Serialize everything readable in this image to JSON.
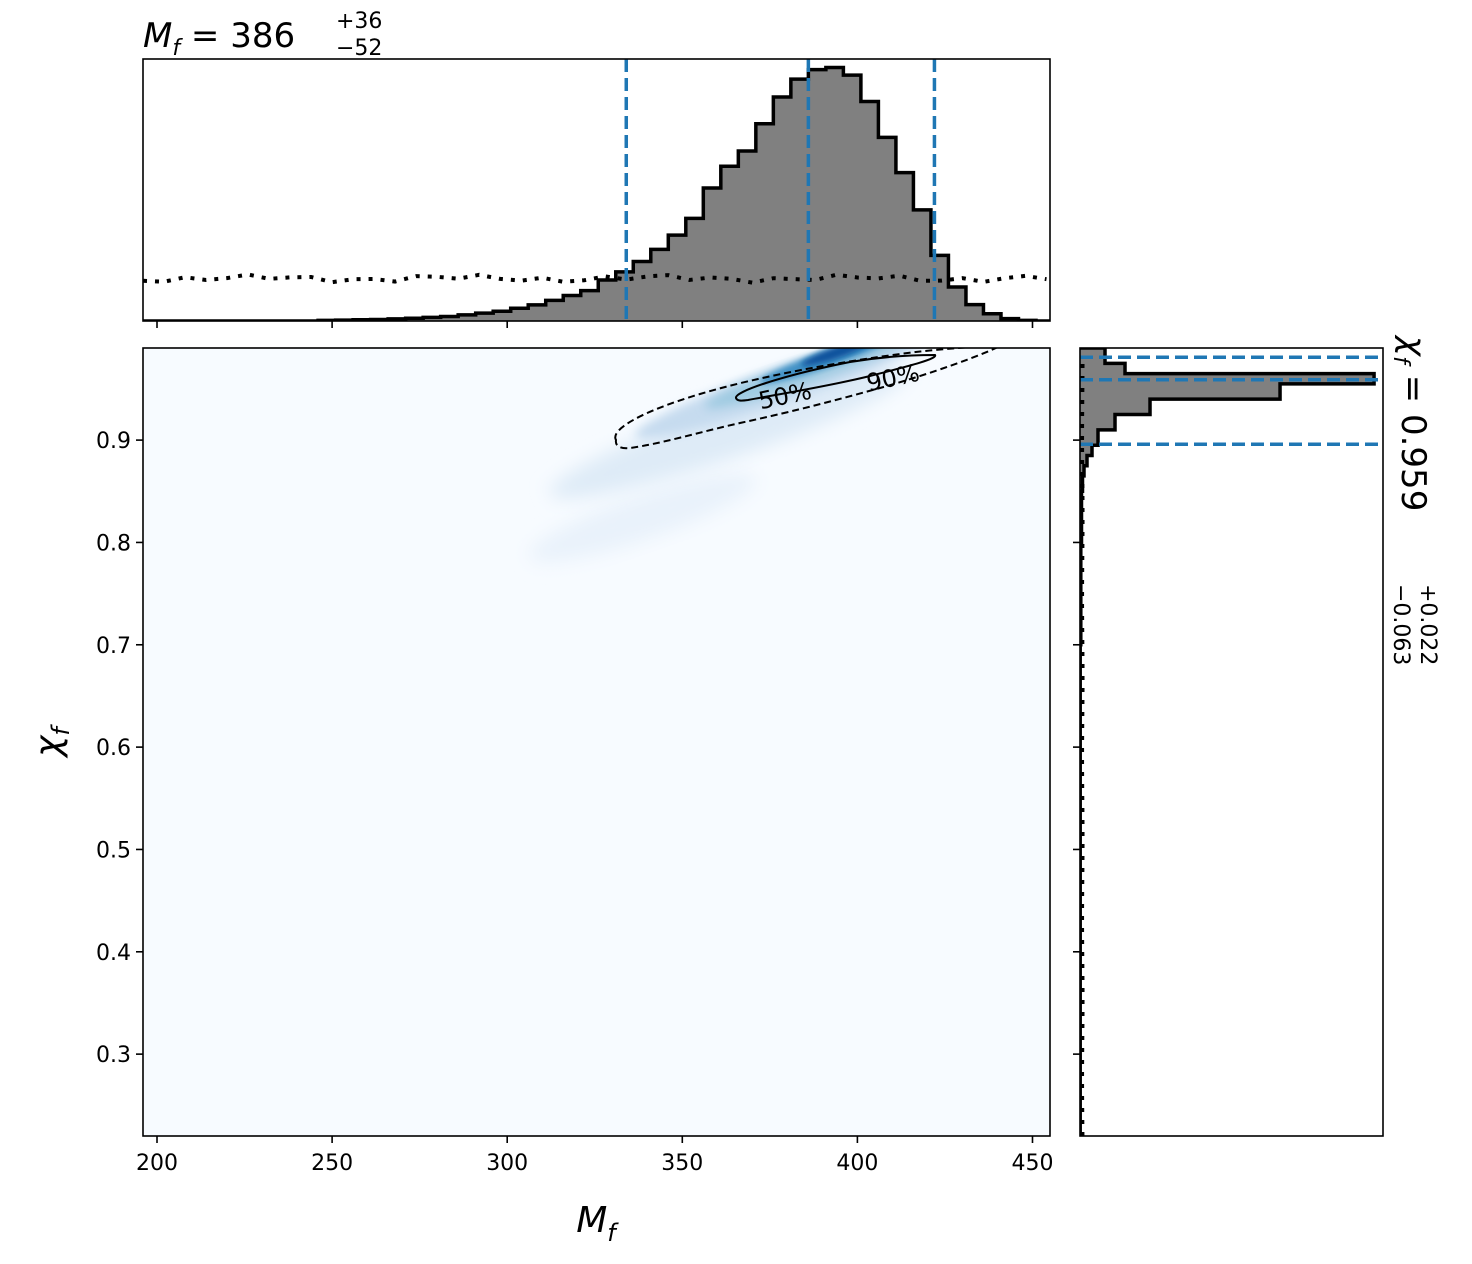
{
  "chart_data": {
    "type": "corner-plot",
    "top_title": {
      "lhs": "M",
      "sub": "f",
      "eq": " = ",
      "median": "386",
      "plus": "+36",
      "minus": "−52"
    },
    "right_title": {
      "lhs": "χ",
      "sub": "f",
      "eq": " = ",
      "median": "0.959",
      "plus": "+0.022",
      "minus": "−0.063"
    },
    "xlabel": {
      "main": "M",
      "sub": "f"
    },
    "ylabel": {
      "main": "χ",
      "sub": "f"
    },
    "xlim": [
      196,
      455
    ],
    "ylim": [
      0.22,
      0.99
    ],
    "xticks": [
      200,
      250,
      300,
      350,
      400,
      450
    ],
    "xtick_labels": [
      "200",
      "250",
      "300",
      "350",
      "400",
      "450"
    ],
    "yticks": [
      0.3,
      0.4,
      0.5,
      0.6,
      0.7,
      0.8,
      0.9
    ],
    "ytick_labels": [
      "0.3",
      "0.4",
      "0.5",
      "0.6",
      "0.7",
      "0.8",
      "0.9"
    ],
    "mf_quantiles": [
      334,
      386,
      422
    ],
    "chi_quantiles": [
      0.896,
      0.959,
      0.981
    ],
    "contour_labels": [
      "50%",
      "90%"
    ],
    "mf_histogram": {
      "bin_edges": [
        196,
        201,
        206,
        211,
        216,
        221,
        226,
        231,
        236,
        241,
        246,
        251,
        256,
        261,
        266,
        271,
        276,
        281,
        286,
        291,
        296,
        301,
        306,
        311,
        316,
        321,
        326,
        331,
        336,
        341,
        346,
        351,
        356,
        361,
        366,
        371,
        376,
        381,
        386,
        391,
        396,
        401,
        406,
        411,
        416,
        421,
        426,
        431,
        436,
        441,
        446,
        451,
        455
      ],
      "counts": [
        0.0,
        0.0,
        0.0,
        0.0,
        0.0,
        0.0,
        0.0,
        0.0,
        0.0,
        0.0,
        0.2,
        0.3,
        0.4,
        0.5,
        0.7,
        0.9,
        1.2,
        1.5,
        2.0,
        2.6,
        3.2,
        4.2,
        5.3,
        6.8,
        8.4,
        10.0,
        13.5,
        16.2,
        19.6,
        23.6,
        28.3,
        33.8,
        43.8,
        51.0,
        56.0,
        65.0,
        73.8,
        79.7,
        82.8,
        83.5,
        81.0,
        72.3,
        60.5,
        48.9,
        36.6,
        21.6,
        11.2,
        5.4,
        2.4,
        0.8,
        0.2,
        0.0
      ],
      "prior_level": 14.0
    },
    "chi_histogram": {
      "bin_edges": [
        0.22,
        0.7,
        0.8,
        0.85,
        0.865,
        0.875,
        0.885,
        0.895,
        0.91,
        0.925,
        0.94,
        0.955,
        0.965,
        0.975,
        0.99
      ],
      "counts": [
        0.2,
        0.8,
        1.5,
        2.5,
        4.0,
        7.0,
        12.0,
        18.0,
        35.0,
        70.0,
        200.0,
        294.0,
        45.0,
        25.0
      ],
      "prior_level": 2.3
    },
    "density_2d": {
      "ridge_start": [
        300,
        0.82
      ],
      "ridge_end": [
        440,
        0.985
      ],
      "peak": [
        390,
        0.963
      ],
      "colormap": "Blues",
      "colors": {
        "low": "#f7fbff",
        "mid": "#9ecae1",
        "high": "#2171b5",
        "peak": "#08306b"
      }
    },
    "colors": {
      "quantile_line": "#1f77b4",
      "hist_fill": "#808080",
      "hist_edge": "#000000",
      "contour": "#000000"
    }
  }
}
